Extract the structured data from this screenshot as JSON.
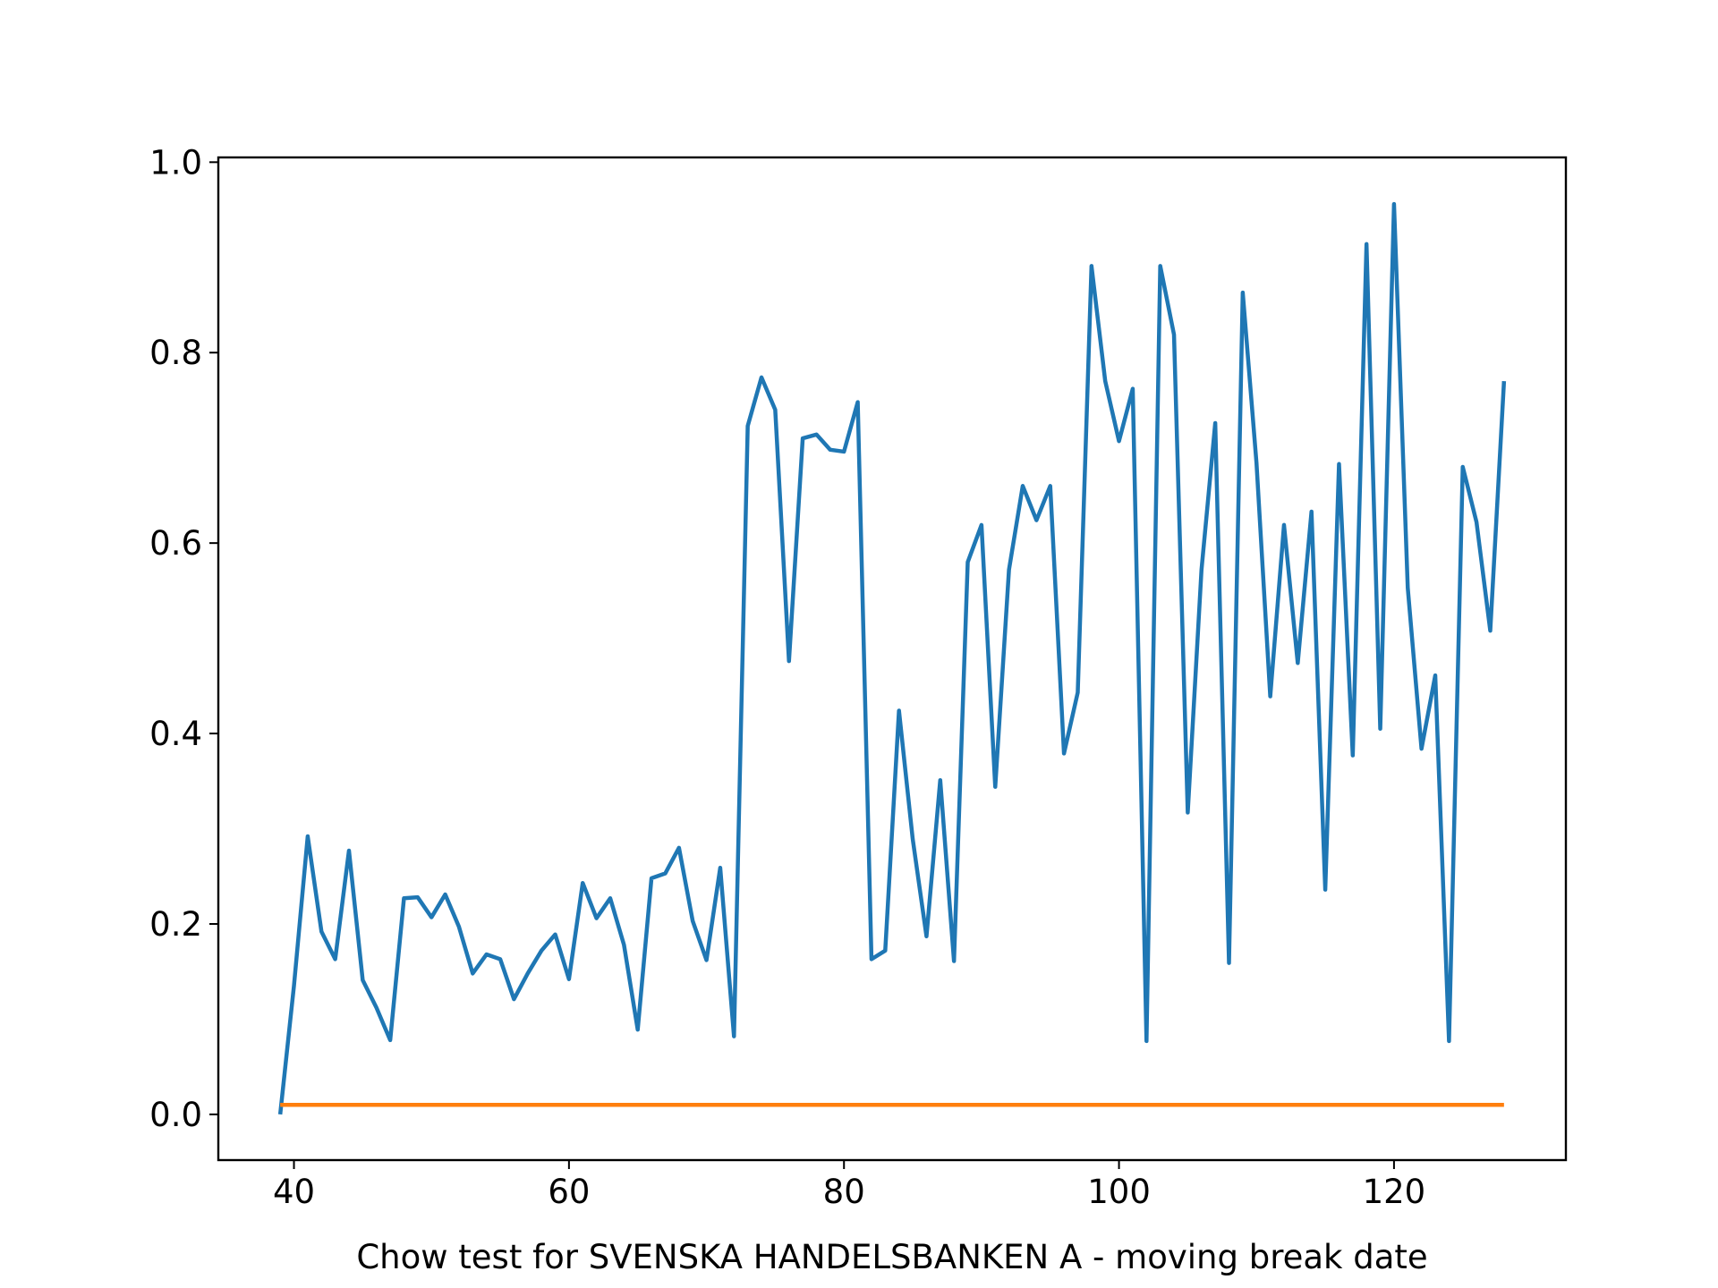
{
  "chart_data": {
    "type": "line",
    "title": "",
    "xlabel": "Chow test for SVENSKA HANDELSBANKEN A - moving break date",
    "ylabel": "",
    "xlim": [
      34.5,
      132.5
    ],
    "ylim": [
      -0.048,
      1.005
    ],
    "xticks": [
      40,
      60,
      80,
      100,
      120
    ],
    "yticks": [
      0.0,
      0.2,
      0.4,
      0.6,
      0.8,
      1.0
    ],
    "xtick_labels": [
      "40",
      "60",
      "80",
      "100",
      "120"
    ],
    "ytick_labels": [
      "0.0",
      "0.2",
      "0.4",
      "0.6",
      "0.8",
      "1.0"
    ],
    "grid": false,
    "series": [
      {
        "color": "#1f77b4",
        "x": [
          39,
          40,
          41,
          42,
          43,
          44,
          45,
          46,
          47,
          48,
          49,
          50,
          51,
          52,
          53,
          54,
          55,
          56,
          57,
          58,
          59,
          60,
          61,
          62,
          63,
          64,
          65,
          66,
          67,
          68,
          69,
          70,
          71,
          72,
          73,
          74,
          75,
          76,
          77,
          78,
          79,
          80,
          81,
          82,
          83,
          84,
          85,
          86,
          87,
          88,
          89,
          90,
          91,
          92,
          93,
          94,
          95,
          96,
          97,
          98,
          99,
          100,
          101,
          102,
          103,
          104,
          105,
          106,
          107,
          108,
          109,
          110,
          111,
          112,
          113,
          114,
          115,
          116,
          117,
          118,
          119,
          120,
          121,
          122,
          123,
          124,
          125,
          126,
          127,
          128
        ],
        "y": [
          0.0,
          0.135,
          0.292,
          0.192,
          0.163,
          0.277,
          0.141,
          0.112,
          0.078,
          0.227,
          0.228,
          0.207,
          0.231,
          0.197,
          0.148,
          0.168,
          0.163,
          0.121,
          0.148,
          0.172,
          0.189,
          0.142,
          0.243,
          0.206,
          0.227,
          0.178,
          0.089,
          0.248,
          0.253,
          0.28,
          0.203,
          0.162,
          0.259,
          0.082,
          0.723,
          0.774,
          0.74,
          0.476,
          0.71,
          0.714,
          0.698,
          0.696,
          0.748,
          0.163,
          0.172,
          0.424,
          0.289,
          0.187,
          0.351,
          0.161,
          0.58,
          0.619,
          0.344,
          0.572,
          0.66,
          0.624,
          0.66,
          0.379,
          0.443,
          0.891,
          0.77,
          0.707,
          0.762,
          0.077,
          0.891,
          0.819,
          0.317,
          0.572,
          0.726,
          0.159,
          0.863,
          0.684,
          0.439,
          0.619,
          0.474,
          0.633,
          0.236,
          0.683,
          0.377,
          0.914,
          0.405,
          0.956,
          0.553,
          0.384,
          0.461,
          0.077,
          0.68,
          0.622,
          0.508,
          0.77
        ]
      },
      {
        "color": "#ff7f0e",
        "x": [
          39,
          128
        ],
        "y": [
          0.01,
          0.01
        ]
      }
    ]
  }
}
